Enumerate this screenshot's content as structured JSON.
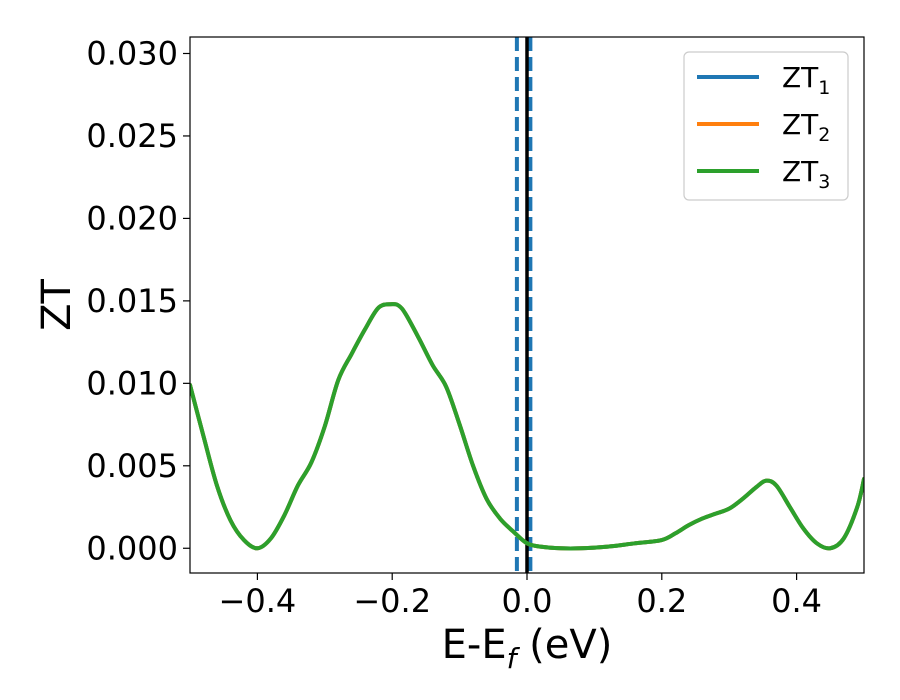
{
  "chart_data": {
    "type": "line",
    "xlabel": "E-E",
    "xlabel_sub": "f",
    "xlabel_tail": " (eV)",
    "ylabel": "ZT",
    "xlim": [
      -0.5,
      0.5
    ],
    "ylim": [
      -0.0015,
      0.031
    ],
    "xticks": [
      -0.4,
      -0.2,
      0.0,
      0.2,
      0.4
    ],
    "xtick_labels": [
      "−0.4",
      "−0.2",
      "0.0",
      "0.2",
      "0.4"
    ],
    "yticks": [
      0.0,
      0.005,
      0.01,
      0.015,
      0.02,
      0.025,
      0.03
    ],
    "ytick_labels": [
      "0.000",
      "0.005",
      "0.010",
      "0.015",
      "0.020",
      "0.025",
      "0.030"
    ],
    "grid": false,
    "legend_position": "top-right",
    "vlines": [
      {
        "x": -0.015,
        "style": "dashed",
        "color": "#1f77b4"
      },
      {
        "x": 0.005,
        "style": "dashed",
        "color": "#1f77b4"
      },
      {
        "x": 0.0,
        "style": "solid",
        "color": "#000000"
      }
    ],
    "x": [
      -0.5,
      -0.48,
      -0.46,
      -0.44,
      -0.42,
      -0.4,
      -0.38,
      -0.36,
      -0.34,
      -0.32,
      -0.3,
      -0.28,
      -0.26,
      -0.24,
      -0.22,
      -0.2,
      -0.19,
      -0.18,
      -0.16,
      -0.14,
      -0.12,
      -0.1,
      -0.08,
      -0.06,
      -0.04,
      -0.02,
      0.0,
      0.02,
      0.05,
      0.08,
      0.12,
      0.16,
      0.2,
      0.22,
      0.24,
      0.26,
      0.28,
      0.3,
      0.32,
      0.34,
      0.355,
      0.37,
      0.39,
      0.41,
      0.43,
      0.45,
      0.47,
      0.49,
      0.5
    ],
    "series": [
      {
        "name": "ZT",
        "sub": "1",
        "color": "#1f77b4",
        "values": [
          0.0099,
          0.0068,
          0.0038,
          0.0017,
          0.0005,
          0.0,
          0.0006,
          0.002,
          0.0038,
          0.0052,
          0.0074,
          0.0102,
          0.0118,
          0.0133,
          0.0146,
          0.0148,
          0.0147,
          0.0142,
          0.0127,
          0.0111,
          0.0098,
          0.0075,
          0.005,
          0.003,
          0.0018,
          0.001,
          0.0003,
          0.0001,
          0.0,
          0.0,
          0.0001,
          0.0003,
          0.0005,
          0.0009,
          0.0014,
          0.0018,
          0.0021,
          0.0024,
          0.003,
          0.0037,
          0.0041,
          0.0038,
          0.0025,
          0.0012,
          0.0003,
          0.0,
          0.0006,
          0.0025,
          0.0042
        ]
      },
      {
        "name": "ZT",
        "sub": "2",
        "color": "#ff7f0e",
        "values": [
          0.0099,
          0.0068,
          0.0038,
          0.0017,
          0.0005,
          0.0,
          0.0006,
          0.002,
          0.0038,
          0.0052,
          0.0074,
          0.0102,
          0.0118,
          0.0133,
          0.0146,
          0.0148,
          0.0147,
          0.0142,
          0.0127,
          0.0111,
          0.0098,
          0.0075,
          0.005,
          0.003,
          0.0018,
          0.001,
          0.0003,
          0.0001,
          0.0,
          0.0,
          0.0001,
          0.0003,
          0.0005,
          0.0009,
          0.0014,
          0.0018,
          0.0021,
          0.0024,
          0.003,
          0.0037,
          0.0041,
          0.0038,
          0.0025,
          0.0012,
          0.0003,
          0.0,
          0.0006,
          0.0025,
          0.0042
        ]
      },
      {
        "name": "ZT",
        "sub": "3",
        "color": "#2ca02c",
        "values": [
          0.0099,
          0.0068,
          0.0038,
          0.0017,
          0.0005,
          0.0,
          0.0006,
          0.002,
          0.0038,
          0.0052,
          0.0074,
          0.0102,
          0.0118,
          0.0133,
          0.0146,
          0.0148,
          0.0147,
          0.0142,
          0.0127,
          0.0111,
          0.0098,
          0.0075,
          0.005,
          0.003,
          0.0018,
          0.001,
          0.0003,
          0.0001,
          0.0,
          0.0,
          0.0001,
          0.0003,
          0.0005,
          0.0009,
          0.0014,
          0.0018,
          0.0021,
          0.0024,
          0.003,
          0.0037,
          0.0041,
          0.0038,
          0.0025,
          0.0012,
          0.0003,
          0.0,
          0.0006,
          0.0025,
          0.0042
        ]
      }
    ]
  }
}
